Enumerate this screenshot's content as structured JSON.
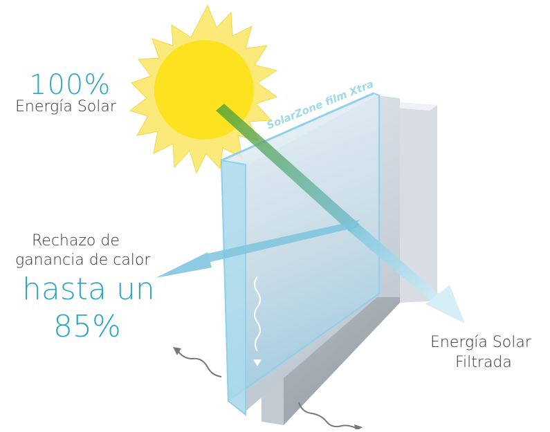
{
  "labels": {
    "solar_percent": "100%",
    "solar_energy": "Energía Solar",
    "film_name": "SolarZone film Xtra",
    "rejection_line1": "Rechazo de",
    "rejection_line2": "ganancia de calor",
    "rejection_line3": "hasta un",
    "rejection_percent": "85%",
    "filtered_line1": "Energía Solar",
    "filtered_line2": "Filtrada"
  },
  "colors": {
    "accent_blue": "#2aa6c4",
    "sun_core": "#fde21f",
    "sun_rays": "#fbe97a",
    "text_dark": "#333333",
    "glass_edge": "#8fd0ea"
  }
}
